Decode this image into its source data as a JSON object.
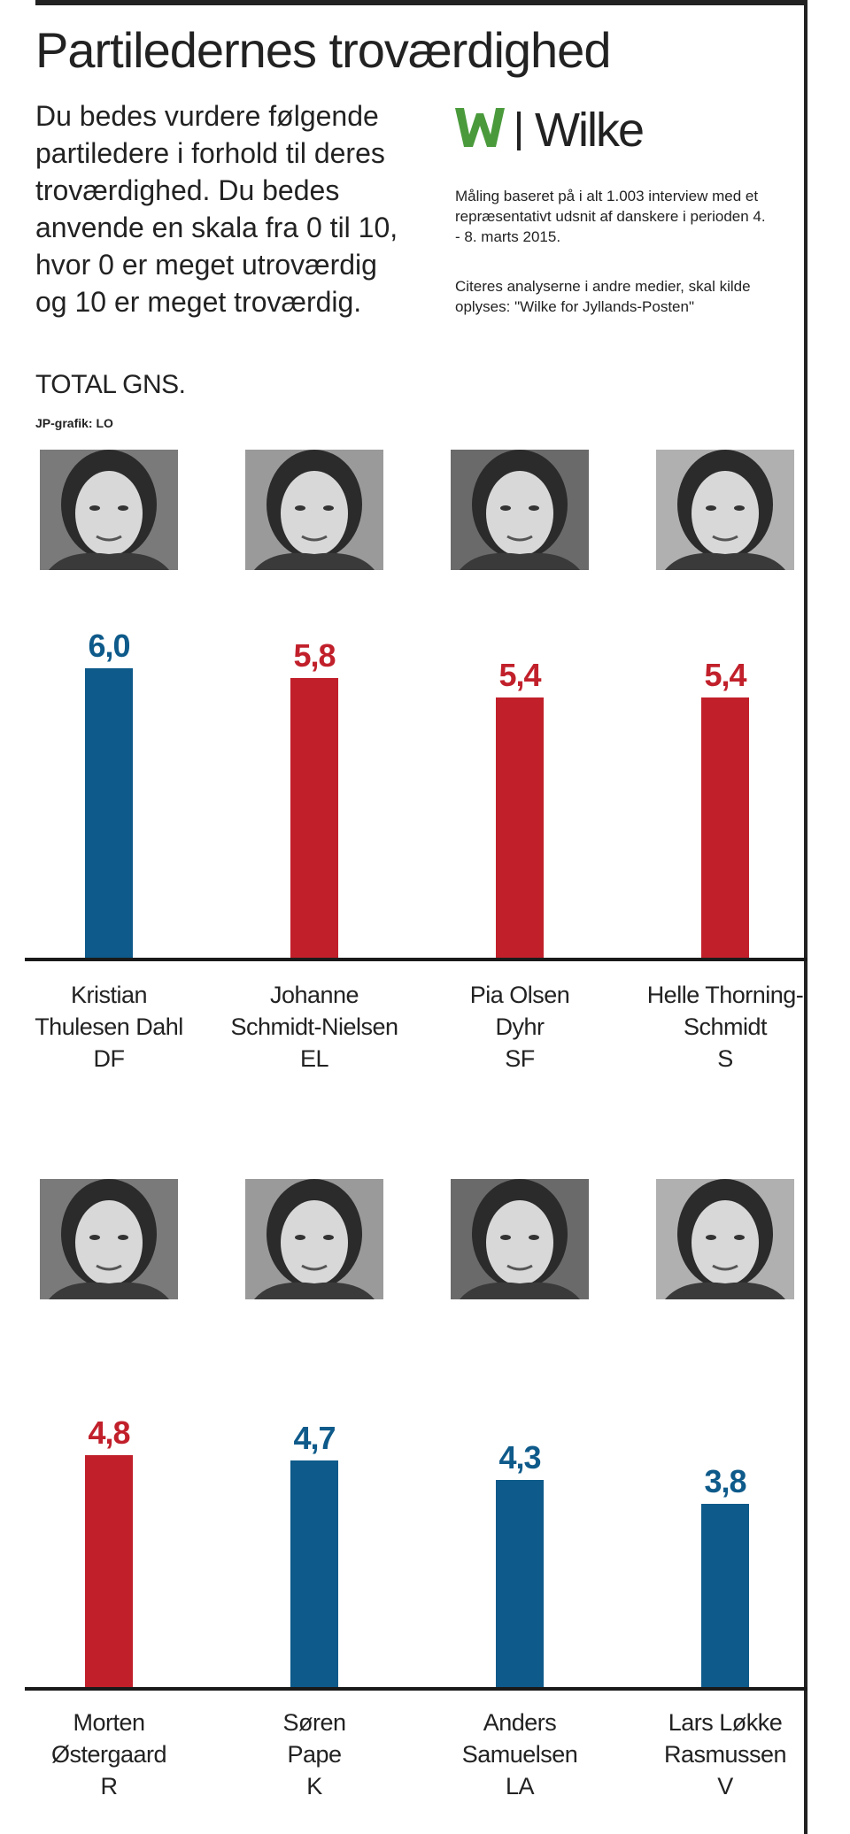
{
  "title": "Partiledernes troværdighed",
  "intro": "Du bedes vurdere følgende partiledere i forhold til deres troværdighed. Du bedes anvende en skala fra 0 til 10, hvor 0 er meget utroværdig og 10 er meget troværdig.",
  "logo": {
    "text": "Wilke"
  },
  "method": "Måling baseret på i alt 1.003 interview med et repræsentativt udsnit af danskere i perioden 4. - 8. marts 2015.",
  "cite": "Citeres analyserne i andre medier, skal kilde oplyses: \"Wilke for Jyllands-Posten\"",
  "total_label": "TOTAL GNS.",
  "credit": "JP-grafik: LO",
  "colors": {
    "blue": "#0e5a8a",
    "red": "#c1202b",
    "logo_green": "#4a9a3c"
  },
  "chart_data": {
    "type": "bar",
    "title": "Partiledernes troværdighed",
    "ylabel": "TOTAL GNS.",
    "ylim": [
      0,
      10
    ],
    "groups": [
      {
        "categories": [
          "Kristian Thulesen Dahl DF",
          "Johanne Schmidt-Nielsen EL",
          "Pia Olsen Dyhr SF",
          "Helle Thorning-Schmidt S"
        ],
        "bars": [
          {
            "name_lines": [
              "Kristian",
              "Thulesen Dahl"
            ],
            "party": "DF",
            "value": 6.0,
            "label": "6,0",
            "color": "#0e5a8a",
            "photo": "portrait-photo"
          },
          {
            "name_lines": [
              "Johanne",
              "Schmidt-Nielsen"
            ],
            "party": "EL",
            "value": 5.8,
            "label": "5,8",
            "color": "#c1202b",
            "photo": "portrait-photo"
          },
          {
            "name_lines": [
              "Pia Olsen",
              "Dyhr"
            ],
            "party": "SF",
            "value": 5.4,
            "label": "5,4",
            "color": "#c1202b",
            "photo": "portrait-photo"
          },
          {
            "name_lines": [
              "Helle Thorning-",
              "Schmidt"
            ],
            "party": "S",
            "value": 5.4,
            "label": "5,4",
            "color": "#c1202b",
            "photo": "portrait-photo"
          }
        ]
      },
      {
        "categories": [
          "Morten Østergaard R",
          "Søren Pape K",
          "Anders Samuelsen LA",
          "Lars Løkke Rasmussen V"
        ],
        "bars": [
          {
            "name_lines": [
              "Morten",
              "Østergaard"
            ],
            "party": "R",
            "value": 4.8,
            "label": "4,8",
            "color": "#c1202b",
            "photo": "portrait-photo"
          },
          {
            "name_lines": [
              "Søren",
              "Pape"
            ],
            "party": "K",
            "value": 4.7,
            "label": "4,7",
            "color": "#0e5a8a",
            "photo": "portrait-photo"
          },
          {
            "name_lines": [
              "Anders",
              "Samuelsen"
            ],
            "party": "LA",
            "value": 4.3,
            "label": "4,3",
            "color": "#0e5a8a",
            "photo": "portrait-photo"
          },
          {
            "name_lines": [
              "Lars Løkke",
              "Rasmussen"
            ],
            "party": "V",
            "value": 3.8,
            "label": "3,8",
            "color": "#0e5a8a",
            "photo": "portrait-photo"
          }
        ]
      }
    ]
  }
}
